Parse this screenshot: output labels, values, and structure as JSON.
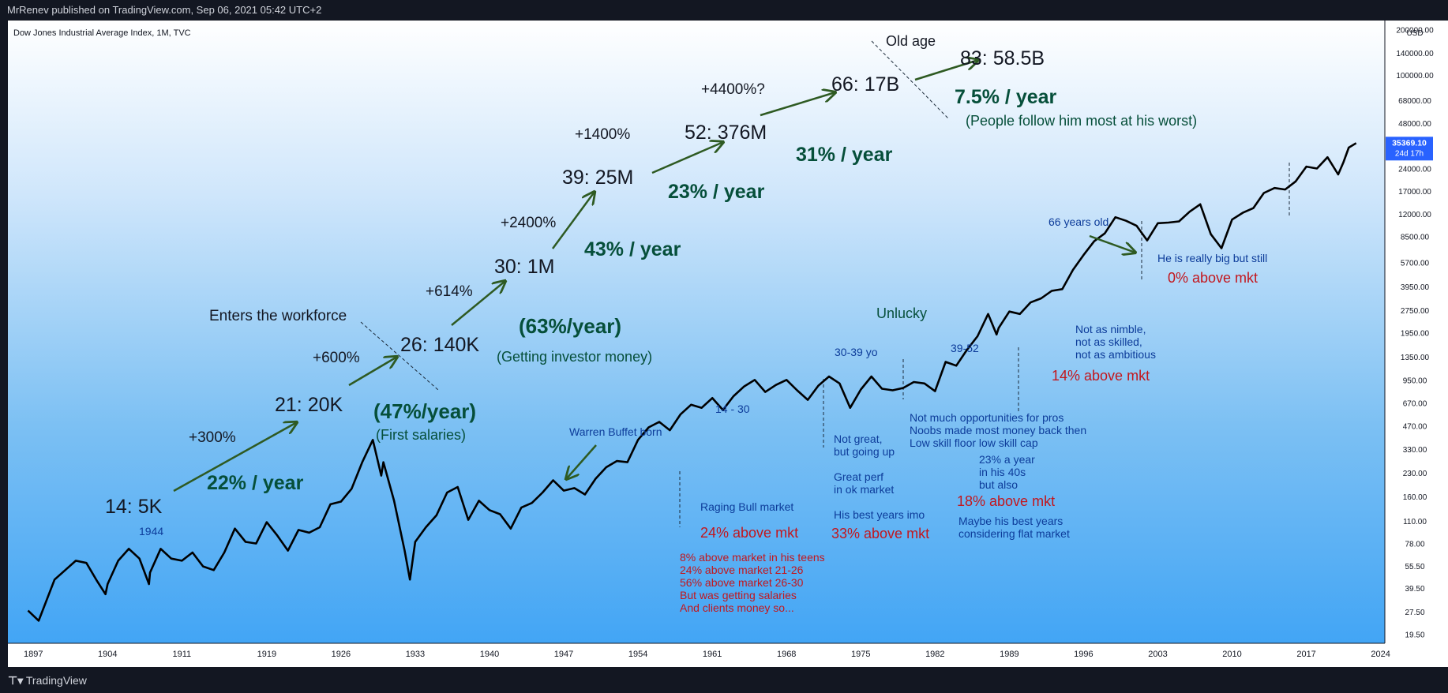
{
  "header": {
    "publisher": "MrRenev published on TradingView.com, Sep 06, 2021 05:42 UTC+2"
  },
  "footer": {
    "brand": "TradingView"
  },
  "chart_data": {
    "type": "line",
    "title": "Dow Jones Industrial Average Index, 1M, TVC",
    "currency": "USD",
    "log_scale": true,
    "ylim": [
      17,
      230000
    ],
    "xlim": [
      1894.6,
      2024.4
    ],
    "x_ticks": [
      "1897",
      "1904",
      "1911",
      "1919",
      "1926",
      "1933",
      "1940",
      "1947",
      "1954",
      "1961",
      "1968",
      "1975",
      "1982",
      "1989",
      "1996",
      "2003",
      "2010",
      "2017",
      "2024"
    ],
    "y_ticks": [
      "200000.00",
      "140000.00",
      "100000.00",
      "68000.00",
      "48000.00",
      "35369.10",
      "24000.00",
      "17000.00",
      "12000.00",
      "8500.00",
      "5700.00",
      "3950.00",
      "2750.00",
      "1950.00",
      "1350.00",
      "950.00",
      "670.00",
      "470.00",
      "330.00",
      "230.00",
      "160.00",
      "110.00",
      "78.00",
      "55.50",
      "39.50",
      "27.50",
      "19.50"
    ],
    "y_tick_values": [
      200000,
      140000,
      100000,
      68000,
      48000,
      35369.1,
      24000,
      17000,
      12000,
      8500,
      5700,
      3950,
      2750,
      1950,
      1350,
      950,
      670,
      470,
      330,
      230,
      160,
      110,
      78,
      55.5,
      39.5,
      27.5,
      19.5
    ],
    "last_price": {
      "value": 35369.1,
      "label": "35369.10",
      "countdown": "24d 17h"
    },
    "series": [
      {
        "values": [
          [
            1896.5,
            28
          ],
          [
            1897.5,
            24
          ],
          [
            1899,
            45
          ],
          [
            1900,
            52
          ],
          [
            1901,
            60
          ],
          [
            1902,
            58
          ],
          [
            1903,
            44
          ],
          [
            1903.8,
            36
          ],
          [
            1904,
            42
          ],
          [
            1905,
            60
          ],
          [
            1906,
            72
          ],
          [
            1907,
            62
          ],
          [
            1907.9,
            42
          ],
          [
            1908,
            50
          ],
          [
            1909,
            72
          ],
          [
            1910,
            62
          ],
          [
            1911,
            60
          ],
          [
            1912,
            68
          ],
          [
            1913,
            55
          ],
          [
            1914,
            52
          ],
          [
            1915,
            68
          ],
          [
            1916,
            98
          ],
          [
            1917,
            80
          ],
          [
            1918,
            78
          ],
          [
            1919,
            108
          ],
          [
            1920,
            88
          ],
          [
            1921,
            70
          ],
          [
            1922,
            96
          ],
          [
            1923,
            92
          ],
          [
            1924,
            100
          ],
          [
            1925,
            142
          ],
          [
            1926,
            148
          ],
          [
            1927,
            180
          ],
          [
            1928,
            270
          ],
          [
            1929,
            380
          ],
          [
            1929.8,
            220
          ],
          [
            1930,
            270
          ],
          [
            1931,
            150
          ],
          [
            1932,
            70
          ],
          [
            1932.5,
            45
          ],
          [
            1933,
            80
          ],
          [
            1934,
            100
          ],
          [
            1935,
            120
          ],
          [
            1936,
            170
          ],
          [
            1937,
            185
          ],
          [
            1938,
            112
          ],
          [
            1939,
            150
          ],
          [
            1940,
            130
          ],
          [
            1941,
            122
          ],
          [
            1942,
            98
          ],
          [
            1943,
            135
          ],
          [
            1944,
            145
          ],
          [
            1945,
            170
          ],
          [
            1946,
            205
          ],
          [
            1947,
            175
          ],
          [
            1948,
            182
          ],
          [
            1949,
            165
          ],
          [
            1950,
            210
          ],
          [
            1951,
            250
          ],
          [
            1952,
            275
          ],
          [
            1953,
            270
          ],
          [
            1954,
            380
          ],
          [
            1955,
            460
          ],
          [
            1956,
            500
          ],
          [
            1957,
            440
          ],
          [
            1958,
            560
          ],
          [
            1959,
            650
          ],
          [
            1960,
            620
          ],
          [
            1961,
            720
          ],
          [
            1962,
            600
          ],
          [
            1963,
            740
          ],
          [
            1964,
            860
          ],
          [
            1965,
            950
          ],
          [
            1966,
            790
          ],
          [
            1967,
            880
          ],
          [
            1968,
            950
          ],
          [
            1969,
            810
          ],
          [
            1970,
            700
          ],
          [
            1971,
            870
          ],
          [
            1972,
            1000
          ],
          [
            1973,
            900
          ],
          [
            1974,
            620
          ],
          [
            1975,
            820
          ],
          [
            1976,
            1000
          ],
          [
            1977,
            830
          ],
          [
            1978,
            810
          ],
          [
            1979,
            840
          ],
          [
            1980,
            920
          ],
          [
            1981,
            900
          ],
          [
            1982,
            800
          ],
          [
            1983,
            1250
          ],
          [
            1984,
            1180
          ],
          [
            1985,
            1500
          ],
          [
            1986,
            1850
          ],
          [
            1987,
            2600
          ],
          [
            1987.8,
            1900
          ],
          [
            1988,
            2100
          ],
          [
            1989,
            2700
          ],
          [
            1990,
            2600
          ],
          [
            1991,
            3100
          ],
          [
            1992,
            3300
          ],
          [
            1993,
            3700
          ],
          [
            1994,
            3800
          ],
          [
            1995,
            5100
          ],
          [
            1996,
            6400
          ],
          [
            1997,
            7900
          ],
          [
            1998,
            8900
          ],
          [
            1999,
            11400
          ],
          [
            2000,
            10800
          ],
          [
            2001,
            10000
          ],
          [
            2002,
            8000
          ],
          [
            2003,
            10400
          ],
          [
            2004,
            10500
          ],
          [
            2005,
            10700
          ],
          [
            2006,
            12400
          ],
          [
            2007,
            13900
          ],
          [
            2008,
            8800
          ],
          [
            2009,
            7100
          ],
          [
            2010,
            11000
          ],
          [
            2011,
            12200
          ],
          [
            2012,
            13100
          ],
          [
            2013,
            16500
          ],
          [
            2014,
            17800
          ],
          [
            2015,
            17400
          ],
          [
            2016,
            19700
          ],
          [
            2017,
            24700
          ],
          [
            2018,
            24000
          ],
          [
            2019,
            28500
          ],
          [
            2020,
            21900
          ],
          [
            2020.5,
            26400
          ],
          [
            2021,
            33000
          ],
          [
            2021.7,
            35369
          ]
        ]
      }
    ],
    "annotations": [
      "14: 5K",
      "1944",
      "22% / year",
      "+300%",
      "21: 20K",
      "(47%/year)",
      "(First salaries)",
      "+600%",
      "26: 140K",
      "Enters the workforce",
      "+614%",
      "30: 1M",
      "(63%/year)",
      "(Getting investor money)",
      "+2400%",
      "39: 25M",
      "43% / year",
      "+1400%",
      "52: 376M",
      "23% / year",
      "+4400%?",
      "66: 17B",
      "31% / year",
      "Old age",
      "83: 58.5B",
      "7.5% / year",
      "(People follow him most at his worst)",
      "Warren Buffet born",
      "14 - 30",
      "Raging Bull market",
      "24% above mkt",
      "8% above market in his teens",
      "24% above market 21-26",
      "56% above market 26-30",
      "But was getting salaries",
      "And clients money so...",
      "30-39 yo",
      "Not great,",
      "but going up",
      "Great perf",
      "in ok market",
      "His best years imo",
      "33% above mkt",
      "Unlucky",
      "39-52",
      "Not much opportunities for pros",
      "Noobs made most money back then",
      "Low skill floor low skill cap",
      "23% a year",
      "in his 40s",
      "but also",
      "18% above mkt",
      "Maybe his best years",
      "considering flat market",
      "Not as nimble,",
      "not as skilled,",
      "not as ambitious",
      "14% above mkt",
      "66 years old",
      "He is really big but still",
      "0% above mkt"
    ]
  },
  "colors": {
    "bg_top": "#ffffff",
    "bg_bottom": "#42a5f5",
    "line": "#000000",
    "dark_green": "#064f3a",
    "arrow_green": "#2e5a22",
    "navy": "#0d3c9a",
    "red": "#c3161c",
    "price_badge": "#2962ff"
  }
}
